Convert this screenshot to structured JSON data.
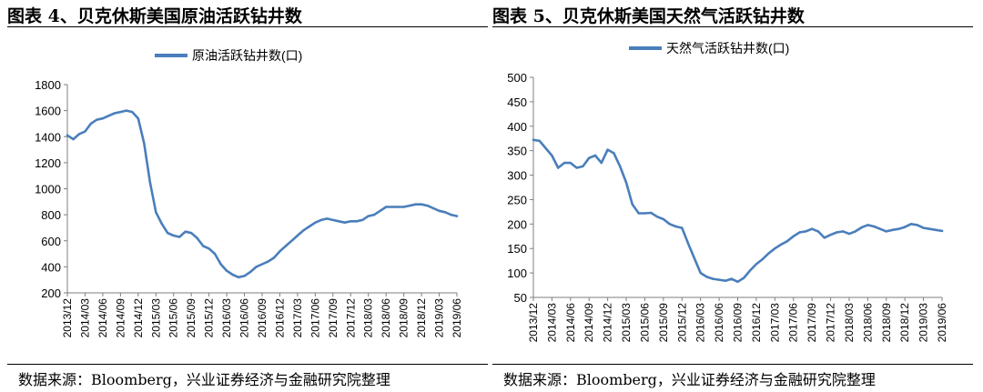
{
  "charts": [
    {
      "title": "图表 4、贝克休斯美国原油活跃钻井数",
      "source": "数据来源：Bloomberg，兴业证券经济与金融研究院整理",
      "legend_label": "原油活跃钻井数(口)",
      "line_color": "#4a7ebb",
      "chart_data": {
        "type": "line",
        "title": "",
        "xlabel": "",
        "ylabel": "",
        "ylim": [
          200,
          1800
        ],
        "yticks": [
          200,
          400,
          600,
          800,
          1000,
          1200,
          1400,
          1600,
          1800
        ],
        "x_tick_labels": [
          "2013/12",
          "2014/03",
          "2014/06",
          "2014/09",
          "2014/12",
          "2015/03",
          "2015/06",
          "2015/09",
          "2015/12",
          "2016/03",
          "2016/06",
          "2016/09",
          "2016/12",
          "2017/03",
          "2017/06",
          "2017/09",
          "2017/12",
          "2018/03",
          "2018/06",
          "2018/09",
          "2018/12",
          "2019/03",
          "2019/06"
        ],
        "grid": false,
        "legend": "top-center",
        "series": [
          {
            "name": "原油活跃钻井数(口)",
            "x": [
              "2013/12",
              "2014/01",
              "2014/02",
              "2014/03",
              "2014/04",
              "2014/05",
              "2014/06",
              "2014/07",
              "2014/08",
              "2014/09",
              "2014/10",
              "2014/11",
              "2014/12",
              "2015/01",
              "2015/02",
              "2015/03",
              "2015/04",
              "2015/05",
              "2015/06",
              "2015/07",
              "2015/08",
              "2015/09",
              "2015/10",
              "2015/11",
              "2015/12",
              "2016/01",
              "2016/02",
              "2016/03",
              "2016/04",
              "2016/05",
              "2016/06",
              "2016/07",
              "2016/08",
              "2016/09",
              "2016/10",
              "2016/11",
              "2016/12",
              "2017/01",
              "2017/02",
              "2017/03",
              "2017/04",
              "2017/05",
              "2017/06",
              "2017/07",
              "2017/08",
              "2017/09",
              "2017/10",
              "2017/11",
              "2017/12",
              "2018/01",
              "2018/02",
              "2018/03",
              "2018/04",
              "2018/05",
              "2018/06",
              "2018/07",
              "2018/08",
              "2018/09",
              "2018/10",
              "2018/11",
              "2018/12",
              "2019/01",
              "2019/02",
              "2019/03",
              "2019/04",
              "2019/05",
              "2019/06"
            ],
            "values": [
              1410,
              1380,
              1420,
              1440,
              1500,
              1530,
              1540,
              1560,
              1580,
              1590,
              1600,
              1590,
              1540,
              1350,
              1050,
              820,
              730,
              660,
              640,
              630,
              670,
              660,
              620,
              560,
              540,
              500,
              420,
              370,
              340,
              320,
              330,
              360,
              400,
              420,
              440,
              470,
              520,
              560,
              600,
              640,
              680,
              710,
              740,
              760,
              770,
              760,
              750,
              740,
              750,
              750,
              760,
              790,
              800,
              830,
              860,
              860,
              860,
              860,
              870,
              880,
              880,
              870,
              850,
              830,
              820,
              800,
              790
            ]
          }
        ]
      }
    },
    {
      "title": "图表 5、贝克休斯美国天然气活跃钻井数",
      "source": "数据来源：Bloomberg，兴业证券经济与金融研究院整理",
      "legend_label": "天然气活跃钻井数(口)",
      "line_color": "#4a7ebb",
      "chart_data": {
        "type": "line",
        "title": "",
        "xlabel": "",
        "ylabel": "",
        "ylim": [
          50,
          500
        ],
        "yticks": [
          50,
          100,
          150,
          200,
          250,
          300,
          350,
          400,
          450,
          500
        ],
        "x_tick_labels": [
          "2013/12",
          "2014/03",
          "2014/06",
          "2014/09",
          "2014/12",
          "2015/03",
          "2015/06",
          "2015/09",
          "2015/12",
          "2016/03",
          "2016/06",
          "2016/09",
          "2016/12",
          "2017/03",
          "2017/06",
          "2017/09",
          "2017/12",
          "2018/03",
          "2018/06",
          "2018/09",
          "2018/12",
          "2019/03",
          "2019/06"
        ],
        "grid": false,
        "legend": "top-center",
        "series": [
          {
            "name": "天然气活跃钻井数(口)",
            "x": [
              "2013/12",
              "2014/01",
              "2014/02",
              "2014/03",
              "2014/04",
              "2014/05",
              "2014/06",
              "2014/07",
              "2014/08",
              "2014/09",
              "2014/10",
              "2014/11",
              "2014/12",
              "2015/01",
              "2015/02",
              "2015/03",
              "2015/04",
              "2015/05",
              "2015/06",
              "2015/07",
              "2015/08",
              "2015/09",
              "2015/10",
              "2015/11",
              "2015/12",
              "2016/01",
              "2016/02",
              "2016/03",
              "2016/04",
              "2016/05",
              "2016/06",
              "2016/07",
              "2016/08",
              "2016/09",
              "2016/10",
              "2016/11",
              "2016/12",
              "2017/01",
              "2017/02",
              "2017/03",
              "2017/04",
              "2017/05",
              "2017/06",
              "2017/07",
              "2017/08",
              "2017/09",
              "2017/10",
              "2017/11",
              "2017/12",
              "2018/01",
              "2018/02",
              "2018/03",
              "2018/04",
              "2018/05",
              "2018/06",
              "2018/07",
              "2018/08",
              "2018/09",
              "2018/10",
              "2018/11",
              "2018/12",
              "2019/01",
              "2019/02",
              "2019/03",
              "2019/04",
              "2019/05",
              "2019/06"
            ],
            "values": [
              372,
              370,
              355,
              340,
              315,
              325,
              325,
              315,
              318,
              335,
              340,
              325,
              352,
              345,
              318,
              285,
              240,
              222,
              222,
              223,
              215,
              210,
              200,
              195,
              192,
              160,
              130,
              100,
              92,
              88,
              86,
              84,
              88,
              82,
              90,
              105,
              118,
              128,
              140,
              150,
              158,
              165,
              175,
              183,
              185,
              190,
              185,
              172,
              178,
              183,
              185,
              180,
              185,
              193,
              198,
              195,
              190,
              185,
              188,
              190,
              194,
              200,
              198,
              192,
              190,
              188,
              186
            ]
          }
        ]
      }
    }
  ]
}
